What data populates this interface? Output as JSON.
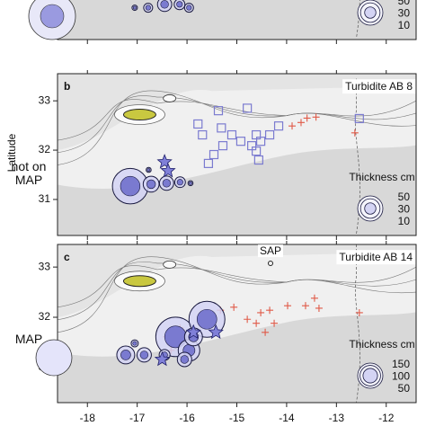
{
  "chart_data": [
    {
      "type": "bubble-map",
      "xlim": [
        -18.6,
        -11.4
      ],
      "ylim": [
        30.27,
        33.55
      ],
      "size_legend": {
        "title": "Thickness cm",
        "values": [
          50,
          30,
          10
        ]
      },
      "bubbles": {
        "x": [
          -17.05,
          -16.78,
          -16.45,
          -16.15,
          -15.96
        ],
        "y": [
          30.93,
          30.93,
          31.0,
          31.0,
          30.93
        ],
        "sizes": [
          2.3,
          6.4,
          16,
          9,
          6.4
        ]
      }
    },
    {
      "type": "bubble-map",
      "panel": "b",
      "title": "Turbidite AB 8",
      "ylabel": "Latitude",
      "annotation": "not on MAP",
      "xlim": [
        -18.6,
        -11.4
      ],
      "ylim": [
        30.27,
        33.55
      ],
      "yticks": [
        31,
        32,
        33
      ],
      "size_legend": {
        "title": "Thickness cm",
        "values": [
          50,
          30,
          10
        ]
      },
      "bubbles": {
        "x": [
          -17.14,
          -16.72,
          -16.41,
          -16.14,
          -15.93,
          -16.77
        ],
        "y": [
          31.27,
          31.31,
          31.33,
          31.35,
          31.33,
          31.6
        ],
        "sizes": [
          100,
          20,
          16,
          9,
          2,
          2
        ]
      },
      "stars": {
        "x": [
          -16.45,
          -16.38
        ],
        "y": [
          31.76,
          31.58
        ]
      },
      "squares": {
        "x": [
          -15.69,
          -15.78,
          -15.37,
          -14.79,
          -15.31,
          -15.1,
          -14.92,
          -14.61,
          -14.52,
          -14.34,
          -14.61,
          -15.28,
          -15.46,
          -15.57,
          -14.56,
          -14.7,
          -14.16,
          -12.54
        ],
        "y": [
          32.31,
          32.53,
          32.8,
          32.85,
          32.45,
          32.31,
          32.18,
          32.31,
          32.18,
          32.31,
          31.98,
          32.09,
          31.91,
          31.73,
          31.8,
          32.09,
          32.49,
          32.64
        ]
      },
      "crosses": {
        "x": [
          -13.71,
          -13.59,
          -13.41,
          -12.63,
          -13.89
        ],
        "y": [
          32.56,
          32.65,
          32.67,
          32.35,
          32.49
        ]
      }
    },
    {
      "type": "bubble-map",
      "panel": "c",
      "title": "Turbidite AB 14",
      "annotation": "MAP",
      "site_label": "SAP",
      "xlim": [
        -18.6,
        -11.4
      ],
      "ylim": [
        30.3,
        33.45
      ],
      "yticks": [
        31,
        32,
        33
      ],
      "xticks": [
        -18,
        -17,
        -16,
        -15,
        -14,
        -13,
        -12
      ],
      "size_legend": {
        "title": "Thickness cm",
        "values": [
          150,
          100,
          50
        ]
      },
      "bubbles": {
        "x": [
          -17.23,
          -16.86,
          -17.05,
          -16.23,
          -15.6,
          -15.96,
          -16.05,
          -16.45,
          -15.87
        ],
        "y": [
          31.25,
          31.25,
          31.48,
          31.61,
          31.96,
          31.34,
          31.16,
          31.25,
          31.61
        ],
        "sizes": [
          76,
          49,
          12,
          370,
          306,
          110,
          49,
          28,
          76
        ]
      },
      "stars": {
        "x": [
          -16.5,
          -15.87,
          -15.42
        ],
        "y": [
          31.16,
          31.7,
          31.7
        ]
      },
      "crosses": {
        "x": [
          -16.41,
          -16.32,
          -16.14,
          -15.33,
          -15.06,
          -14.79,
          -14.52,
          -14.34,
          -14.61,
          -14.25,
          -13.62,
          -13.44,
          -13.35,
          -13.98,
          -12.54,
          -14.43
        ],
        "y": [
          31.61,
          31.34,
          31.79,
          32.14,
          32.2,
          31.96,
          32.09,
          32.14,
          31.88,
          31.88,
          32.23,
          32.38,
          32.18,
          32.23,
          32.09,
          31.7
        ]
      }
    }
  ]
}
